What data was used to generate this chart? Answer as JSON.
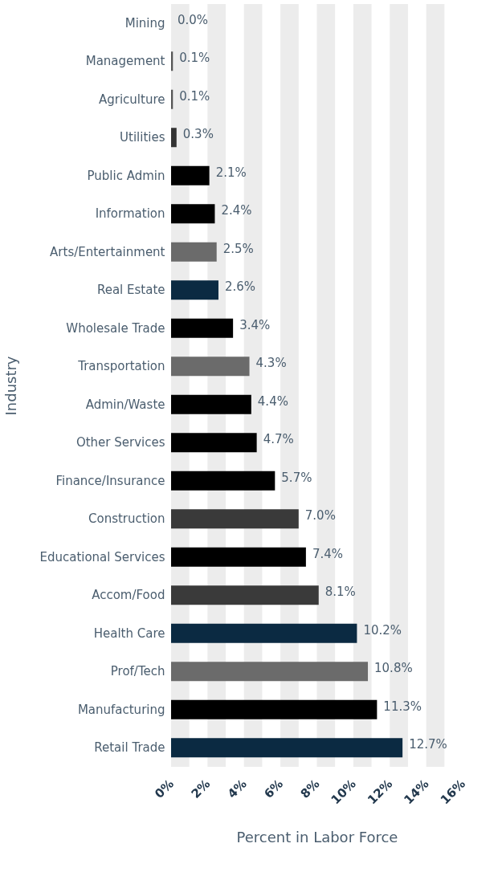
{
  "chart_data": {
    "type": "bar",
    "orientation": "horizontal",
    "xlabel": "Percent in Labor Force",
    "ylabel": "Industry",
    "categories": [
      "Mining",
      "Management",
      "Agriculture",
      "Utilities",
      "Public Admin",
      "Information",
      "Arts/Entertainment",
      "Real Estate",
      "Wholesale Trade",
      "Transportation",
      "Admin/Waste",
      "Other Services",
      "Finance/Insurance",
      "Construction",
      "Educational Services",
      "Accom/Food",
      "Health Care",
      "Prof/Tech",
      "Manufacturing",
      "Retail Trade"
    ],
    "values": [
      0.0,
      0.1,
      0.1,
      0.3,
      2.1,
      2.4,
      2.5,
      2.6,
      3.4,
      4.3,
      4.4,
      4.7,
      5.7,
      7.0,
      7.4,
      8.1,
      10.2,
      10.8,
      11.3,
      12.7
    ],
    "value_labels": [
      "0.0%",
      "0.1%",
      "0.1%",
      "0.3%",
      "2.1%",
      "2.4%",
      "2.5%",
      "2.6%",
      "3.4%",
      "4.3%",
      "4.4%",
      "4.7%",
      "5.7%",
      "7.0%",
      "7.4%",
      "8.1%",
      "10.2%",
      "10.8%",
      "11.3%",
      "12.7%"
    ],
    "colors": [
      "#000000",
      "#555555",
      "#555555",
      "#333333",
      "#000000",
      "#000000",
      "#6b6b6b",
      "#0b2a42",
      "#000000",
      "#6b6b6b",
      "#000000",
      "#000000",
      "#000000",
      "#3a3a3a",
      "#000000",
      "#3a3a3a",
      "#0b2a42",
      "#6b6b6b",
      "#000000",
      "#0b2a42"
    ],
    "xlim": [
      0,
      16
    ],
    "xticks": [
      {
        "value": 0,
        "label": "0%"
      },
      {
        "value": 2,
        "label": "2%"
      },
      {
        "value": 4,
        "label": "4%"
      },
      {
        "value": 6,
        "label": "6%"
      },
      {
        "value": 8,
        "label": "8%"
      },
      {
        "value": 10,
        "label": "10%"
      },
      {
        "value": 12,
        "label": "12%"
      },
      {
        "value": 14,
        "label": "14%"
      },
      {
        "value": 16,
        "label": "16%"
      }
    ],
    "bands": [
      {
        "axis": "x",
        "from": 0,
        "to": 1,
        "color": "#ececec"
      },
      {
        "axis": "x",
        "from": 2,
        "to": 3,
        "color": "#ececec"
      },
      {
        "axis": "x",
        "from": 4,
        "to": 5,
        "color": "#ececec"
      },
      {
        "axis": "x",
        "from": 6,
        "to": 7,
        "color": "#ececec"
      },
      {
        "axis": "x",
        "from": 8,
        "to": 9,
        "color": "#ececec"
      },
      {
        "axis": "x",
        "from": 10,
        "to": 11,
        "color": "#ececec"
      },
      {
        "axis": "x",
        "from": 12,
        "to": 13,
        "color": "#ececec"
      },
      {
        "axis": "x",
        "from": 14,
        "to": 15,
        "color": "#ececec"
      }
    ],
    "grid": false,
    "legend": false
  }
}
